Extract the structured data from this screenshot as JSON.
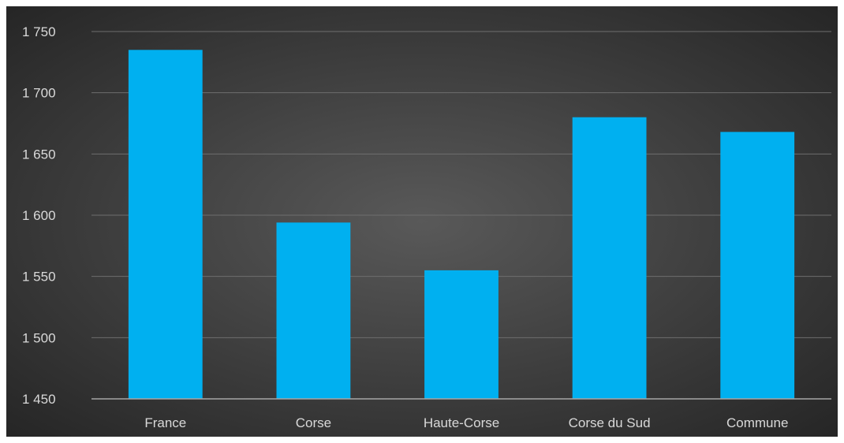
{
  "chart_data": {
    "type": "bar",
    "title": "",
    "xlabel": "",
    "ylabel": "",
    "categories": [
      "France",
      "Corse",
      "Haute-Corse",
      "Corse du Sud",
      "Commune"
    ],
    "values": [
      1735,
      1594,
      1555,
      1680,
      1668
    ],
    "ylim": [
      1450,
      1750
    ],
    "yticks": [
      1450,
      1500,
      1550,
      1600,
      1650,
      1700,
      1750
    ],
    "ytick_labels": [
      "1 450",
      "1 500",
      "1 550",
      "1 600",
      "1 650",
      "1 700",
      "1 750"
    ],
    "grid": true,
    "legend": "none",
    "colors": {
      "bar": "#00b0f0",
      "background_center": "#595959",
      "background_edge": "#262626",
      "text": "#d9d9d9",
      "grid": "#6e6e6e",
      "axis": "#a6a6a6"
    }
  }
}
